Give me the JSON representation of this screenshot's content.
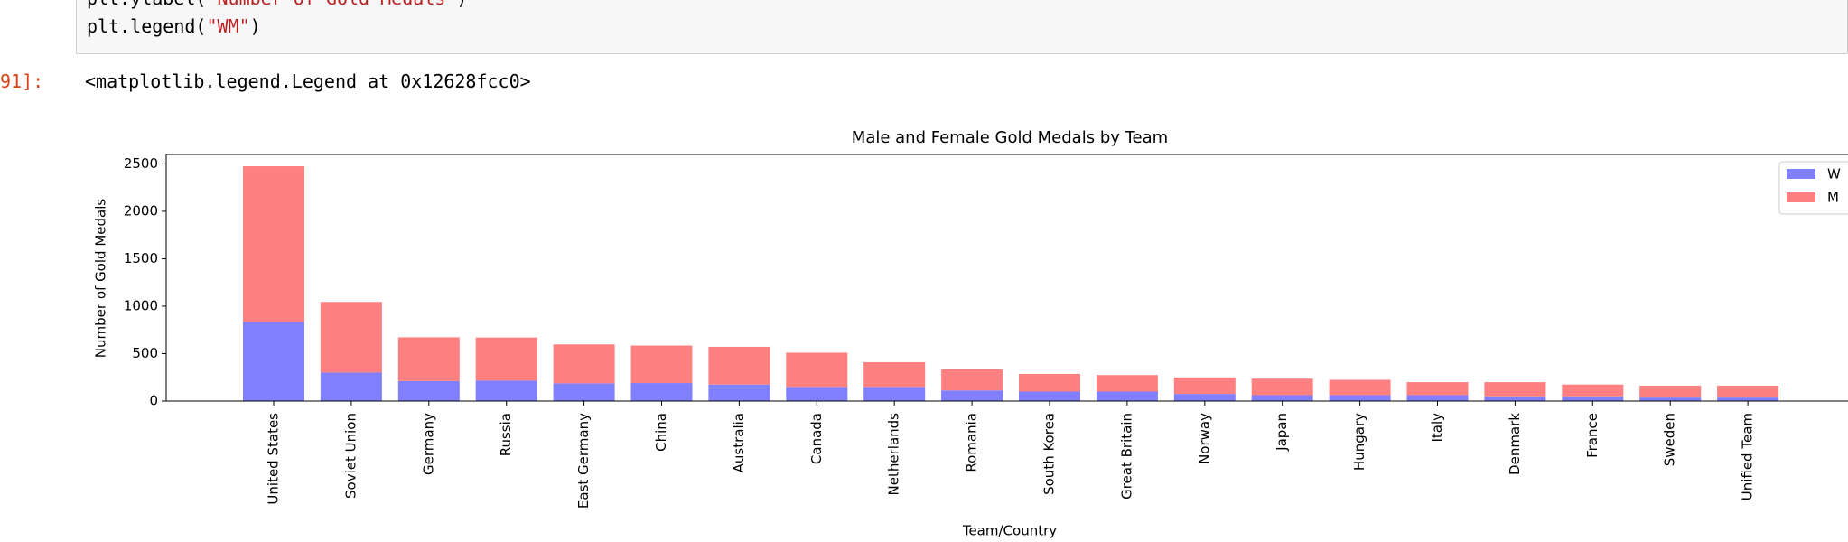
{
  "code_lines": [
    [
      "plt.ylabel(",
      "\"Number of Gold Medals\"",
      ")"
    ],
    [
      "plt.legend(",
      "\"WM\"",
      ")"
    ]
  ],
  "output_prompt": "91]:",
  "output_text": "<matplotlib.legend.Legend at 0x12628fcc0>",
  "chart_data": {
    "type": "stacked-bar",
    "title": "Male and Female Gold Medals by Team",
    "x_label": "Team/Country",
    "y_label": "Number of Gold Medals",
    "categories": [
      "United States",
      "Soviet Union",
      "Germany",
      "Russia",
      "East Germany",
      "China",
      "Australia",
      "Canada",
      "Netherlands",
      "Romania",
      "South Korea",
      "Great Britain",
      "Norway",
      "Japan",
      "Hungary",
      "Italy",
      "Denmark",
      "France",
      "Sweden",
      "Unified Team"
    ],
    "series": [
      {
        "name": "W",
        "color": "#8080ff",
        "values": [
          833,
          300,
          211,
          215,
          187,
          190,
          174,
          149,
          149,
          112,
          100,
          100,
          75,
          62,
          62,
          62,
          50,
          50,
          37,
          37
        ]
      },
      {
        "name": "M",
        "color": "#ff8080",
        "values": [
          1642,
          745,
          461,
          455,
          410,
          395,
          398,
          361,
          261,
          224,
          186,
          174,
          174,
          174,
          162,
          137,
          149,
          124,
          125,
          125
        ]
      }
    ],
    "ylim": [
      0,
      2500
    ],
    "yticks": [
      0,
      500,
      1000,
      1500,
      2000,
      2500
    ],
    "grid": false,
    "legend": "upper right"
  }
}
